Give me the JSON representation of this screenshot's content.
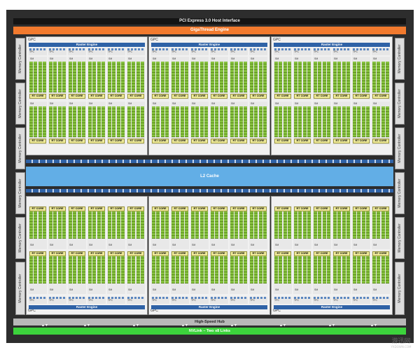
{
  "pcie_label": "PCI Express 3.0 Host Interface",
  "gigathread_label": "GigaThread Engine",
  "memory_controller_label": "Memory Controller",
  "gpc_label": "GPC",
  "raster_engine_label": "Raster Engine",
  "tpc_label": "TPC",
  "sm_label": "SM",
  "rt_core_label": "RT CORE",
  "l2_cache_label": "L2 Cache",
  "high_speed_hub_label": "High-Speed Hub",
  "nvlink_label": "NVLink – Two x8 Links",
  "watermark_text": "游迅网",
  "watermark_sub": "YXDOWN.COM",
  "colors": {
    "gigathread": "#f27a2e",
    "raster_engine": "#2f62a6",
    "l2_cache": "#62aee6",
    "nvlink": "#3cd33c",
    "cuda_core": "#86c13f",
    "rt_core": "#f0ec9a"
  }
}
